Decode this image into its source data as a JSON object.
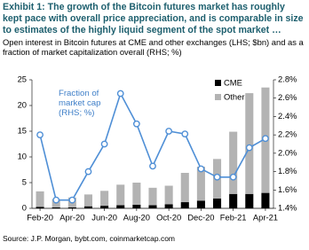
{
  "chart_data": {
    "type": "bar-line",
    "title": "Exhibit 1: The growth of the Bitcoin futures market has roughly kept pace with overall price appreciation, and is comparable in size to estimates of the highly liquid segment of the spot market …",
    "subtitle": "Open interest in Bitcoin futures at CME and other exchanges (LHS; $bn) and as a fraction of market capitalization overall (RHS; %)",
    "source": "Source: J.P. Morgan, bybt.com, coinmarketcap.com",
    "categories": [
      "Feb-20",
      null,
      "Apr-20",
      null,
      "Jun-20",
      null,
      "Aug-20",
      null,
      "Oct-20",
      null,
      "Dec-20",
      null,
      "Feb-21",
      null,
      "Apr-21"
    ],
    "series": [
      {
        "name": "CME",
        "color": "#000000",
        "kind": "bar",
        "values": [
          0.3,
          0.2,
          0.2,
          0.4,
          0.5,
          0.6,
          0.7,
          0.6,
          0.8,
          1.2,
          1.5,
          1.9,
          2.8,
          2.8,
          3.0
        ]
      },
      {
        "name": "Other",
        "color": "#b3b3b3",
        "kind": "bar",
        "values": [
          3.0,
          1.6,
          1.9,
          2.3,
          2.9,
          4.0,
          4.3,
          3.4,
          3.6,
          5.7,
          6.6,
          7.7,
          12.1,
          19.6,
          20.5
        ]
      },
      {
        "name": "Fraction of market cap (RHS; %)",
        "color": "#4f8fd6",
        "kind": "line",
        "axis": "y2",
        "values": [
          2.2,
          1.49,
          1.49,
          1.8,
          2.1,
          2.65,
          2.32,
          1.86,
          2.24,
          2.21,
          1.83,
          1.74,
          1.74,
          2.06,
          2.16
        ]
      }
    ],
    "ylim": [
      0,
      25
    ],
    "yticks": [
      0,
      5,
      10,
      15,
      20,
      25
    ],
    "y2lim": [
      1.4,
      2.8
    ],
    "y2ticks": [
      {
        "value": 1.4,
        "label": "1.4%"
      },
      {
        "value": 1.6,
        "label": "1.6%"
      },
      {
        "value": 1.8,
        "label": "1.8%"
      },
      {
        "value": 2.0,
        "label": "2.0%"
      },
      {
        "value": 2.2,
        "label": "2.2%"
      },
      {
        "value": 2.4,
        "label": "2.4%"
      },
      {
        "value": 2.6,
        "label": "2.6%"
      },
      {
        "value": 2.8,
        "label": "2.8%"
      }
    ],
    "legend": "upper right",
    "grid": false
  }
}
